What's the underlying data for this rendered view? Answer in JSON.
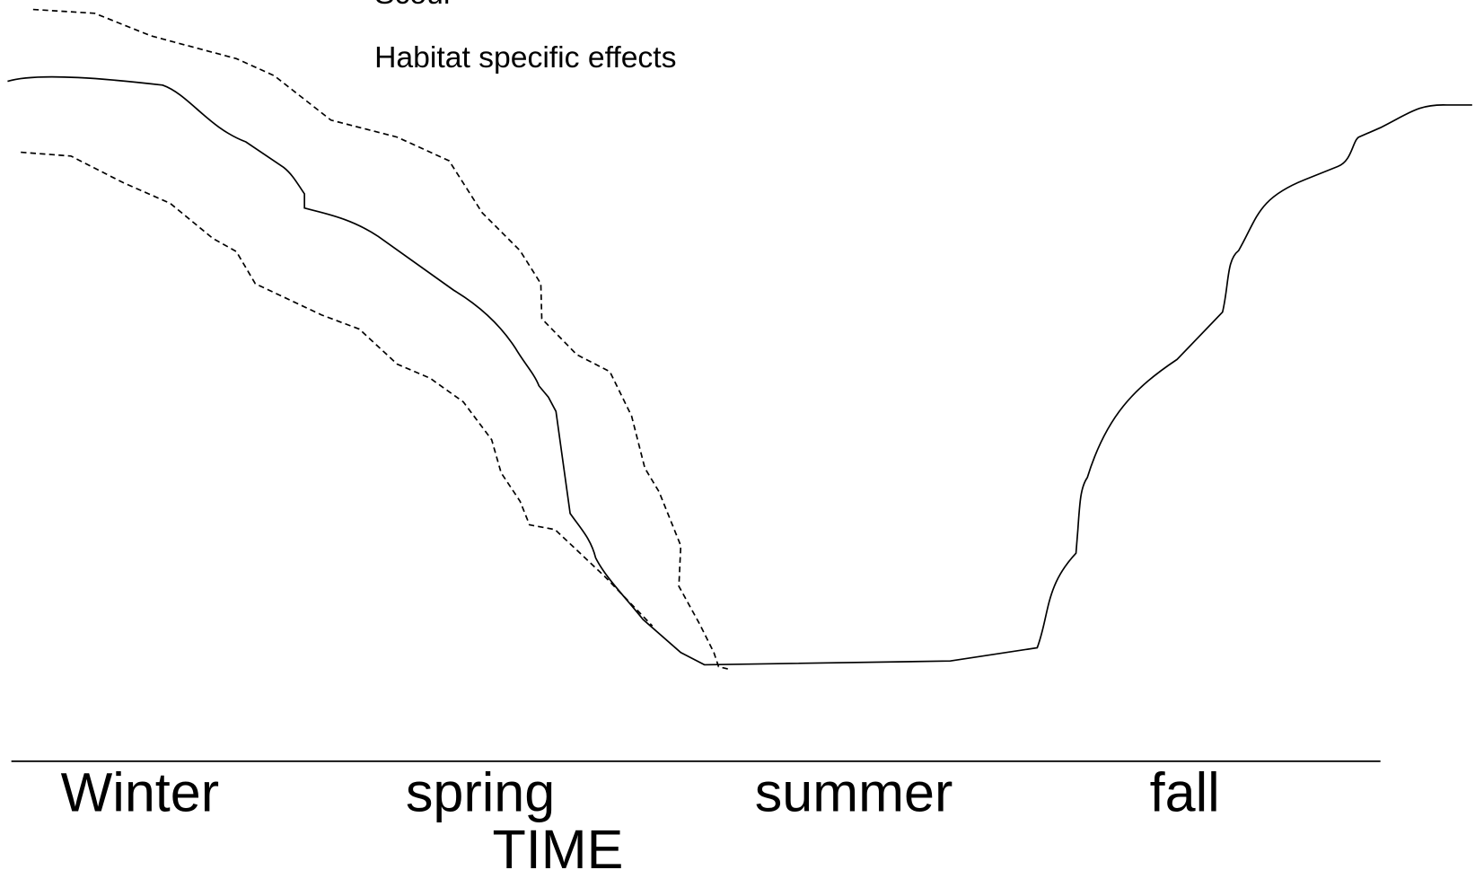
{
  "legend": [
    "Scour",
    "Habitat specific effects"
  ],
  "axis": {
    "categories": [
      "Winter",
      "spring",
      "summer",
      "fall"
    ],
    "label": "TIME"
  }
}
